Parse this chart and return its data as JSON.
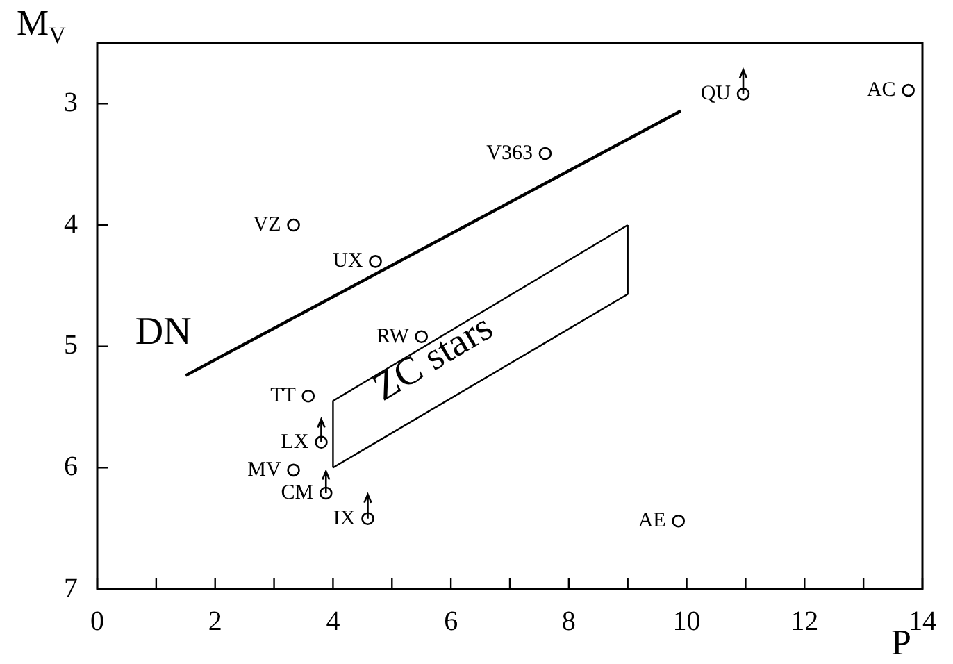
{
  "chart_data": {
    "type": "scatter",
    "xlabel": "P",
    "ylabel": "M$_{V}$",
    "xlim": [
      0,
      14
    ],
    "xticks": [
      0,
      {
        "value": 1,
        "label": null
      },
      2,
      {
        "value": 3,
        "label": null
      },
      4,
      {
        "value": 5,
        "label": null
      },
      6,
      {
        "value": 7,
        "label": null
      },
      8,
      {
        "value": 9,
        "label": null
      },
      10,
      {
        "value": 11,
        "label": null
      },
      12,
      {
        "value": 13,
        "label": null
      },
      14
    ],
    "ylim": [
      7,
      2.5
    ],
    "yticks": [
      3,
      4,
      5,
      6,
      7
    ],
    "grid": false,
    "legend": false,
    "series": [
      {
        "marker": "circle",
        "color": "#000000",
        "x": [
          3.33,
          4.72,
          7.6,
          10.96,
          13.76,
          5.5,
          3.58,
          3.8,
          3.33,
          3.88,
          4.59,
          9.86
        ],
        "values": [
          4.0,
          4.3,
          3.41,
          2.92,
          2.89,
          4.92,
          5.41,
          5.79,
          6.02,
          6.21,
          6.42,
          6.44
        ],
        "value_labels": [
          "VZ",
          "UX",
          "V363",
          "QU",
          "AC",
          "RW",
          "TT",
          "LX",
          "MV",
          "CM",
          "IX",
          "AE"
        ],
        "errors": [
          null,
          null,
          null,
          [
            2.72,
            2.92
          ],
          null,
          null,
          null,
          [
            5.6,
            5.79
          ],
          null,
          [
            6.03,
            6.21
          ],
          [
            6.22,
            6.42
          ],
          null
        ]
      },
      {
        "type": "line",
        "name": "DN",
        "color": "#000000",
        "x": [
          1.5,
          9.9
        ],
        "values": [
          5.24,
          3.06
        ]
      },
      {
        "type": "line",
        "name": "ZC stars",
        "color": "#000000",
        "x": [
          4,
          4,
          9
        ],
        "values": [
          6.0,
          5.45,
          4.0
        ]
      },
      {
        "type": "line",
        "color": "#000000",
        "x": [
          4,
          9,
          9
        ],
        "values": [
          6.0,
          4.57,
          4.0
        ]
      }
    ]
  }
}
